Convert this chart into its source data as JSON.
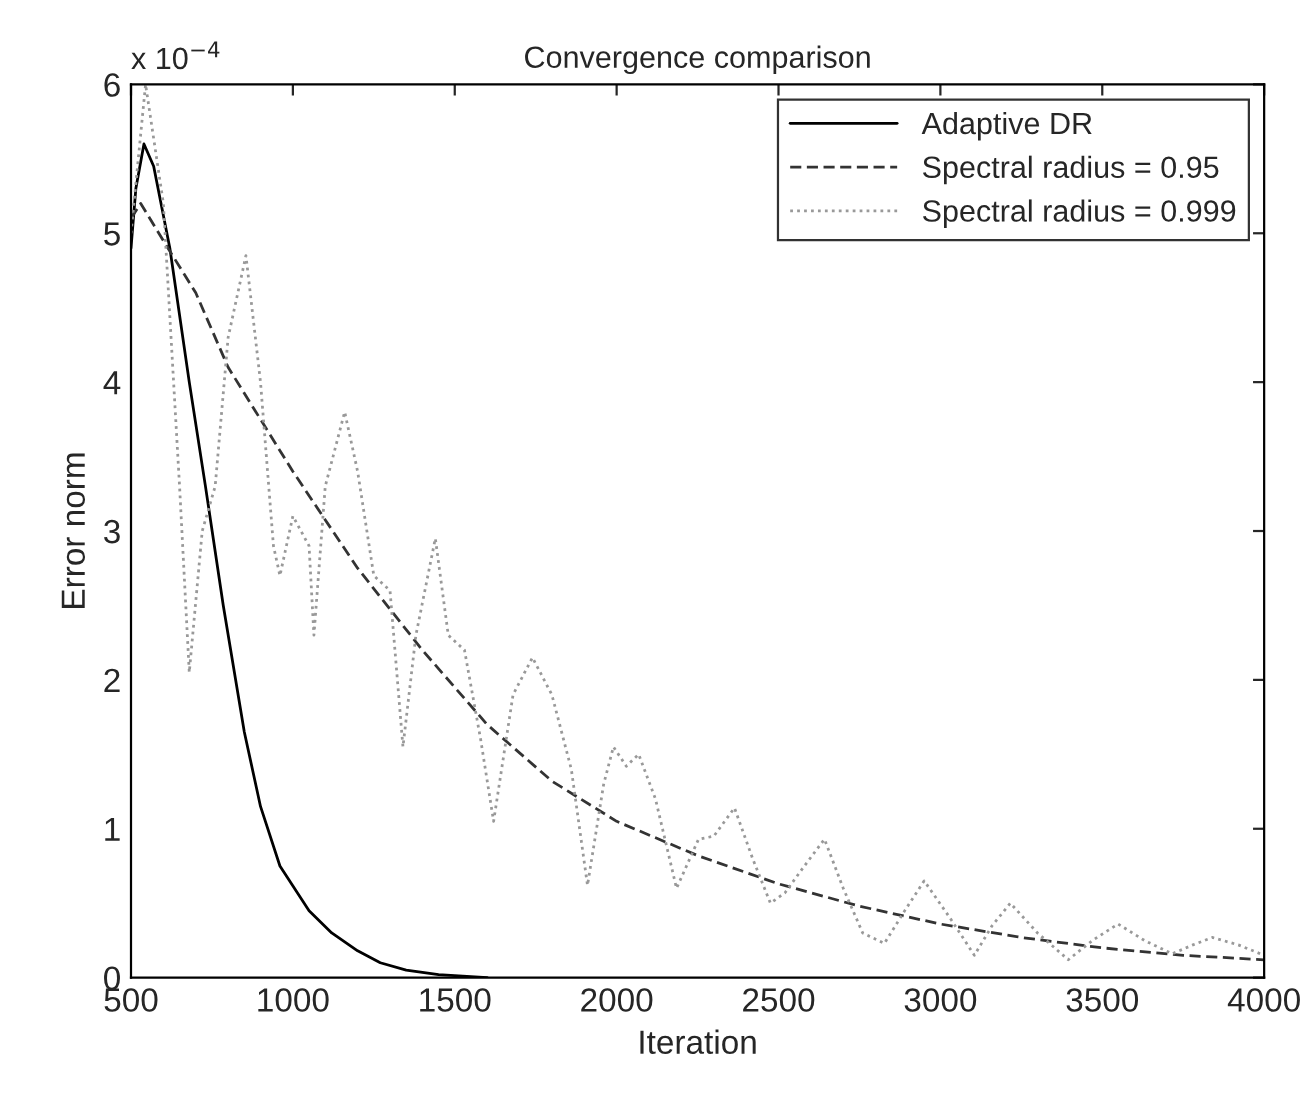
{
  "chart_data": {
    "type": "line",
    "title": "Convergence comparison",
    "xlabel": "Iteration",
    "ylabel": "Error norm",
    "annotations": [
      "x 10$^{−4}$"
    ],
    "xlim": [
      500,
      4000
    ],
    "xticks": [
      500,
      1000,
      1500,
      2000,
      2500,
      3000,
      3500,
      4000
    ],
    "ylim": [
      0,
      6
    ],
    "yticks": [
      0,
      1,
      2,
      3,
      4,
      5,
      6
    ],
    "grid": false,
    "legend": "top right",
    "marker": "none",
    "series": [
      {
        "name": "Adaptive DR",
        "color": "#000000",
        "line_style": "solid",
        "x": [
          500,
          515,
          540,
          570,
          620,
          680,
          730,
          785,
          850,
          900,
          960,
          1050,
          1120,
          1200,
          1270,
          1350,
          1450,
          1600
        ],
        "values": [
          4.9,
          5.3,
          5.6,
          5.45,
          4.9,
          4.0,
          3.3,
          2.5,
          1.65,
          1.15,
          0.75,
          0.45,
          0.3,
          0.18,
          0.1,
          0.05,
          0.02,
          0.0
        ]
      },
      {
        "name": "Spectral radius = 0.95",
        "color": "#333333",
        "line_style": "dashed",
        "x": [
          500,
          530,
          600,
          700,
          800,
          1000,
          1200,
          1400,
          1600,
          1800,
          2000,
          2250,
          2500,
          2750,
          3000,
          3250,
          3500,
          3750,
          4000
        ],
        "values": [
          5.1,
          5.2,
          4.95,
          4.6,
          4.1,
          3.4,
          2.75,
          2.2,
          1.7,
          1.32,
          1.05,
          0.82,
          0.63,
          0.48,
          0.36,
          0.27,
          0.2,
          0.15,
          0.12
        ]
      },
      {
        "name": "Spectral radius = 0.999",
        "color": "#999999",
        "line_style": "dotted",
        "x": [
          500,
          545,
          600,
          650,
          680,
          720,
          760,
          800,
          855,
          900,
          940,
          960,
          1000,
          1050,
          1065,
          1100,
          1160,
          1200,
          1250,
          1300,
          1340,
          1380,
          1440,
          1480,
          1530,
          1580,
          1620,
          1680,
          1740,
          1800,
          1860,
          1910,
          1960,
          1990,
          2030,
          2068,
          2120,
          2185,
          2253,
          2300,
          2364,
          2420,
          2475,
          2520,
          2580,
          2642,
          2700,
          2760,
          2827,
          2890,
          2950,
          3030,
          3105,
          3160,
          3216,
          3300,
          3395,
          3470,
          3549,
          3630,
          3716,
          3780,
          3840,
          3920,
          4000
        ],
        "values": [
          5.0,
          6.0,
          5.2,
          3.3,
          2.05,
          3.0,
          3.3,
          4.3,
          4.85,
          4.0,
          2.9,
          2.7,
          3.1,
          2.9,
          2.3,
          3.3,
          3.8,
          3.4,
          2.7,
          2.6,
          1.55,
          2.3,
          2.95,
          2.3,
          2.2,
          1.6,
          1.05,
          1.9,
          2.15,
          1.9,
          1.4,
          0.62,
          1.3,
          1.55,
          1.42,
          1.5,
          1.2,
          0.6,
          0.93,
          0.95,
          1.14,
          0.8,
          0.5,
          0.57,
          0.75,
          0.93,
          0.6,
          0.3,
          0.23,
          0.45,
          0.65,
          0.4,
          0.15,
          0.35,
          0.5,
          0.3,
          0.12,
          0.25,
          0.36,
          0.25,
          0.16,
          0.22,
          0.27,
          0.22,
          0.15
        ]
      }
    ]
  }
}
